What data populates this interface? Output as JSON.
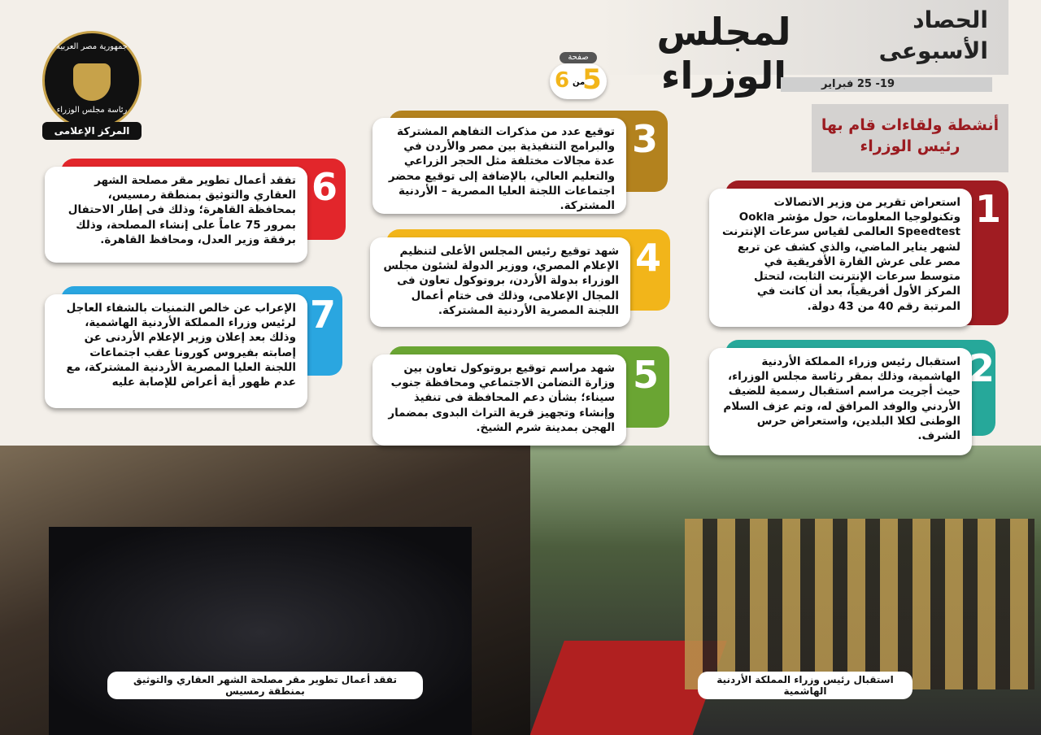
{
  "header": {
    "title_line1": "الحصاد",
    "title_line2": "الأسبوعى",
    "title_main": "لمجلس الوزراء",
    "date": "19- 25 فبراير",
    "page_label": "صفحة",
    "page_number": "5",
    "page_of": "من",
    "page_total": "6"
  },
  "logo": {
    "line1": "جمهورية مصر العربية",
    "line2": "رئاسة مجلس الوزراء",
    "line3": "المركز الإعلامى"
  },
  "section_title": "أنشطة ولقاءات قام بها رئيس الوزراء",
  "items": [
    {
      "number": "1",
      "text": "استعراض تقرير من وزير الاتصالات وتكنولوجيا المعلومات، حول مؤشر Ookla Speedtest العالمى لقياس سرعات الإنترنت لشهر يناير الماضي، والذي كشف عن تربع مصر على عرش القارة الأفريقية في متوسط سرعات الإنترنت الثابت، لتحتل المركز الأول أفريقياً، بعد أن كانت في المرتبة رقم 40 من 43 دولة."
    },
    {
      "number": "2",
      "text": "استقبال رئيس وزراء المملكة الأردنية الهاشمية، وذلك بمقر رئاسة مجلس الوزراء، حيث أجريت مراسم استقبال رسمية للضيف الأردني والوفد المرافق له، وتم عزف السلام الوطنى لكلا البلدين، واستعراض حرس الشرف."
    },
    {
      "number": "3",
      "text": "توقيع عدد من مذكرات التفاهم المشتركة والبرامج التنفيذية بين مصر والأردن في عدة مجالات مختلفة مثل الحجر الزراعي والتعليم العالي، بالإضافة إلى توقيع محضر اجتماعات اللجنة العليا المصرية – الأردنية المشتركة."
    },
    {
      "number": "4",
      "text": "شهد توقيع رئيس المجلس الأعلى لتنظيم الإعلام المصري، ووزير الدولة لشئون مجلس الوزراء بدولة الأردن، بروتوكول تعاون فى المجال الإعلامى، وذلك فى ختام أعمال اللجنة المصرية الأردنية المشتركة."
    },
    {
      "number": "5",
      "text": "شهد مراسم توقيع بروتوكول تعاون بين وزارة التضامن الاجتماعي ومحافظة جنوب سيناء؛ بشأن دعم المحافظة فى تنفيذ وإنشاء وتجهيز قرية التراث البدوى بمضمار الهجن بمدينة شرم الشيخ."
    },
    {
      "number": "6",
      "text": "تفقد أعمال تطوير مقر مصلحة الشهر العقاري والتوثيق بمنطقة رمسيس، بمحافظة القاهرة؛ وذلك فى إطار الاحتفال بمرور 75 عاماً على إنشاء المصلحة، وذلك برفقة وزير العدل، ومحافظ القاهرة."
    },
    {
      "number": "7",
      "text": "الإعراب عن خالص التمنيات بالشفاء العاجل لرئيس وزراء المملكة الأردنية الهاشمية، وذلك بعد إعلان وزير الإعلام الأردنى عن إصابته بفيروس كورونا عقب اجتماعات اللجنة العليا المصرية الأردنية المشتركة، مع عدم ظهور أية أعراض للإصابة عليه"
    }
  ],
  "photos": [
    {
      "caption": "تفقد أعمال تطوير مقر مصلحة الشهر العقاري والتوثيق بمنطقة رمسيس"
    },
    {
      "caption": "استقبال رئيس وزراء المملكة الأردنية الهاشمية"
    }
  ]
}
